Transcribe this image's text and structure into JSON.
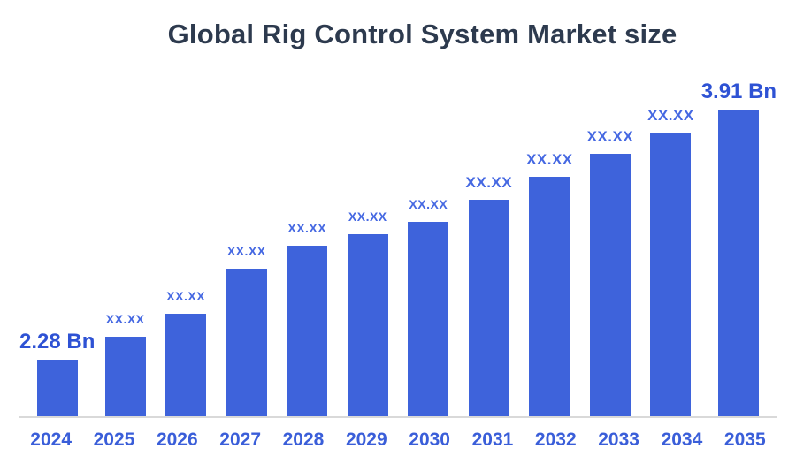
{
  "chart_data": {
    "type": "bar",
    "title": "Global Rig Control System Market size",
    "unit": "Bn",
    "categories": [
      "2024",
      "2025",
      "2026",
      "2027",
      "2028",
      "2029",
      "2030",
      "2031",
      "2032",
      "2033",
      "2034",
      "2035"
    ],
    "values": [
      2.28,
      2.43,
      2.58,
      2.87,
      3.02,
      3.1,
      3.18,
      3.32,
      3.47,
      3.62,
      3.76,
      3.91
    ],
    "value_labels": [
      "2.28 Bn",
      "XX.XX",
      "XX.XX",
      "XX.XX",
      "XX.XX",
      "XX.XX",
      "XX.XX",
      "XX.XX",
      "XX.XX",
      "XX.XX",
      "XX.XX",
      "3.91 Bn"
    ],
    "xlabel": "",
    "ylabel": "",
    "ylim": [
      1.91,
      3.91
    ],
    "grid": false,
    "legend": "none"
  },
  "colors": {
    "background": "#ffffff",
    "bar": "#3e63db",
    "title": "#2d3a4e",
    "emphasized_label": "#2e52d4",
    "masked_label": "#4568e2",
    "tick_label": "#3a5ed9",
    "axis_line": "#d9d9d9"
  }
}
